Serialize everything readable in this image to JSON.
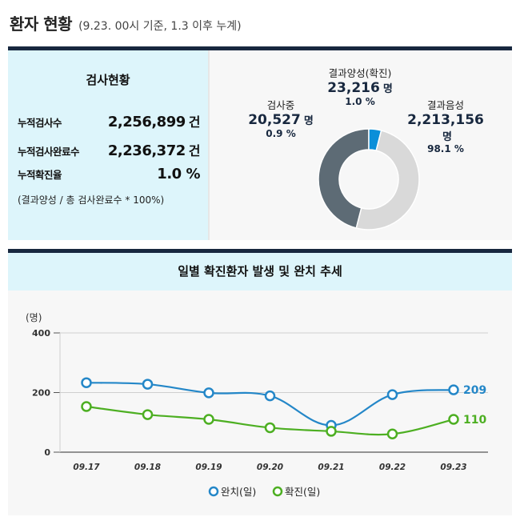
{
  "header": {
    "title": "환자 현황",
    "subtitle": "(9.23. 00시 기준, 1.3 이후 누계)"
  },
  "stats": {
    "title": "검사현황",
    "rows": [
      {
        "label": "누적검사수",
        "value": "2,256,899",
        "unit": "건"
      },
      {
        "label": "누적검사완료수",
        "value": "2,236,372",
        "unit": "건"
      },
      {
        "label": "누적확진율",
        "value": "1.0 %",
        "unit": ""
      }
    ],
    "note": "(결과양성 / 총 검사완료수 * 100%)"
  },
  "donut": {
    "testing": {
      "name": "검사중",
      "value": "20,527",
      "unit": "명",
      "pct": "0.9 %"
    },
    "positive": {
      "name": "결과양성(확진)",
      "value": "23,216",
      "unit": "명",
      "pct": "1.0 %"
    },
    "negative": {
      "name": "결과음성",
      "value": "2,213,156",
      "unit": "명",
      "pct": "98.1 %"
    }
  },
  "colors": {
    "navy": "#18283f",
    "testing": "#5d6b75",
    "positive": "#0b8fd9",
    "negative": "#d9d9d9",
    "released": "#2487c8",
    "confirmed": "#4daf22"
  },
  "chart_data": [
    {
      "type": "pie",
      "categories": [
        "검사중",
        "결과양성(확진)",
        "결과음성"
      ],
      "values": [
        20527,
        23216,
        2213156
      ],
      "percent": [
        0.9,
        1.0,
        98.1
      ]
    },
    {
      "type": "line",
      "title": "일별 확진환자 발생 및 완치 추세",
      "ylabel": "(명)",
      "ylim": [
        0,
        400
      ],
      "yticks": [
        "0",
        "200",
        "400"
      ],
      "categories": [
        "09.17",
        "09.18",
        "09.19",
        "09.20",
        "09.21",
        "09.22",
        "09.23"
      ],
      "series": [
        {
          "name": "완치(일)",
          "values": [
            233,
            228,
            199,
            189,
            90,
            193,
            209
          ],
          "end_label": "209"
        },
        {
          "name": "확진(일)",
          "values": [
            153,
            126,
            110,
            82,
            70,
            61,
            110
          ],
          "end_label": "110"
        }
      ],
      "legend": "bottom"
    }
  ]
}
